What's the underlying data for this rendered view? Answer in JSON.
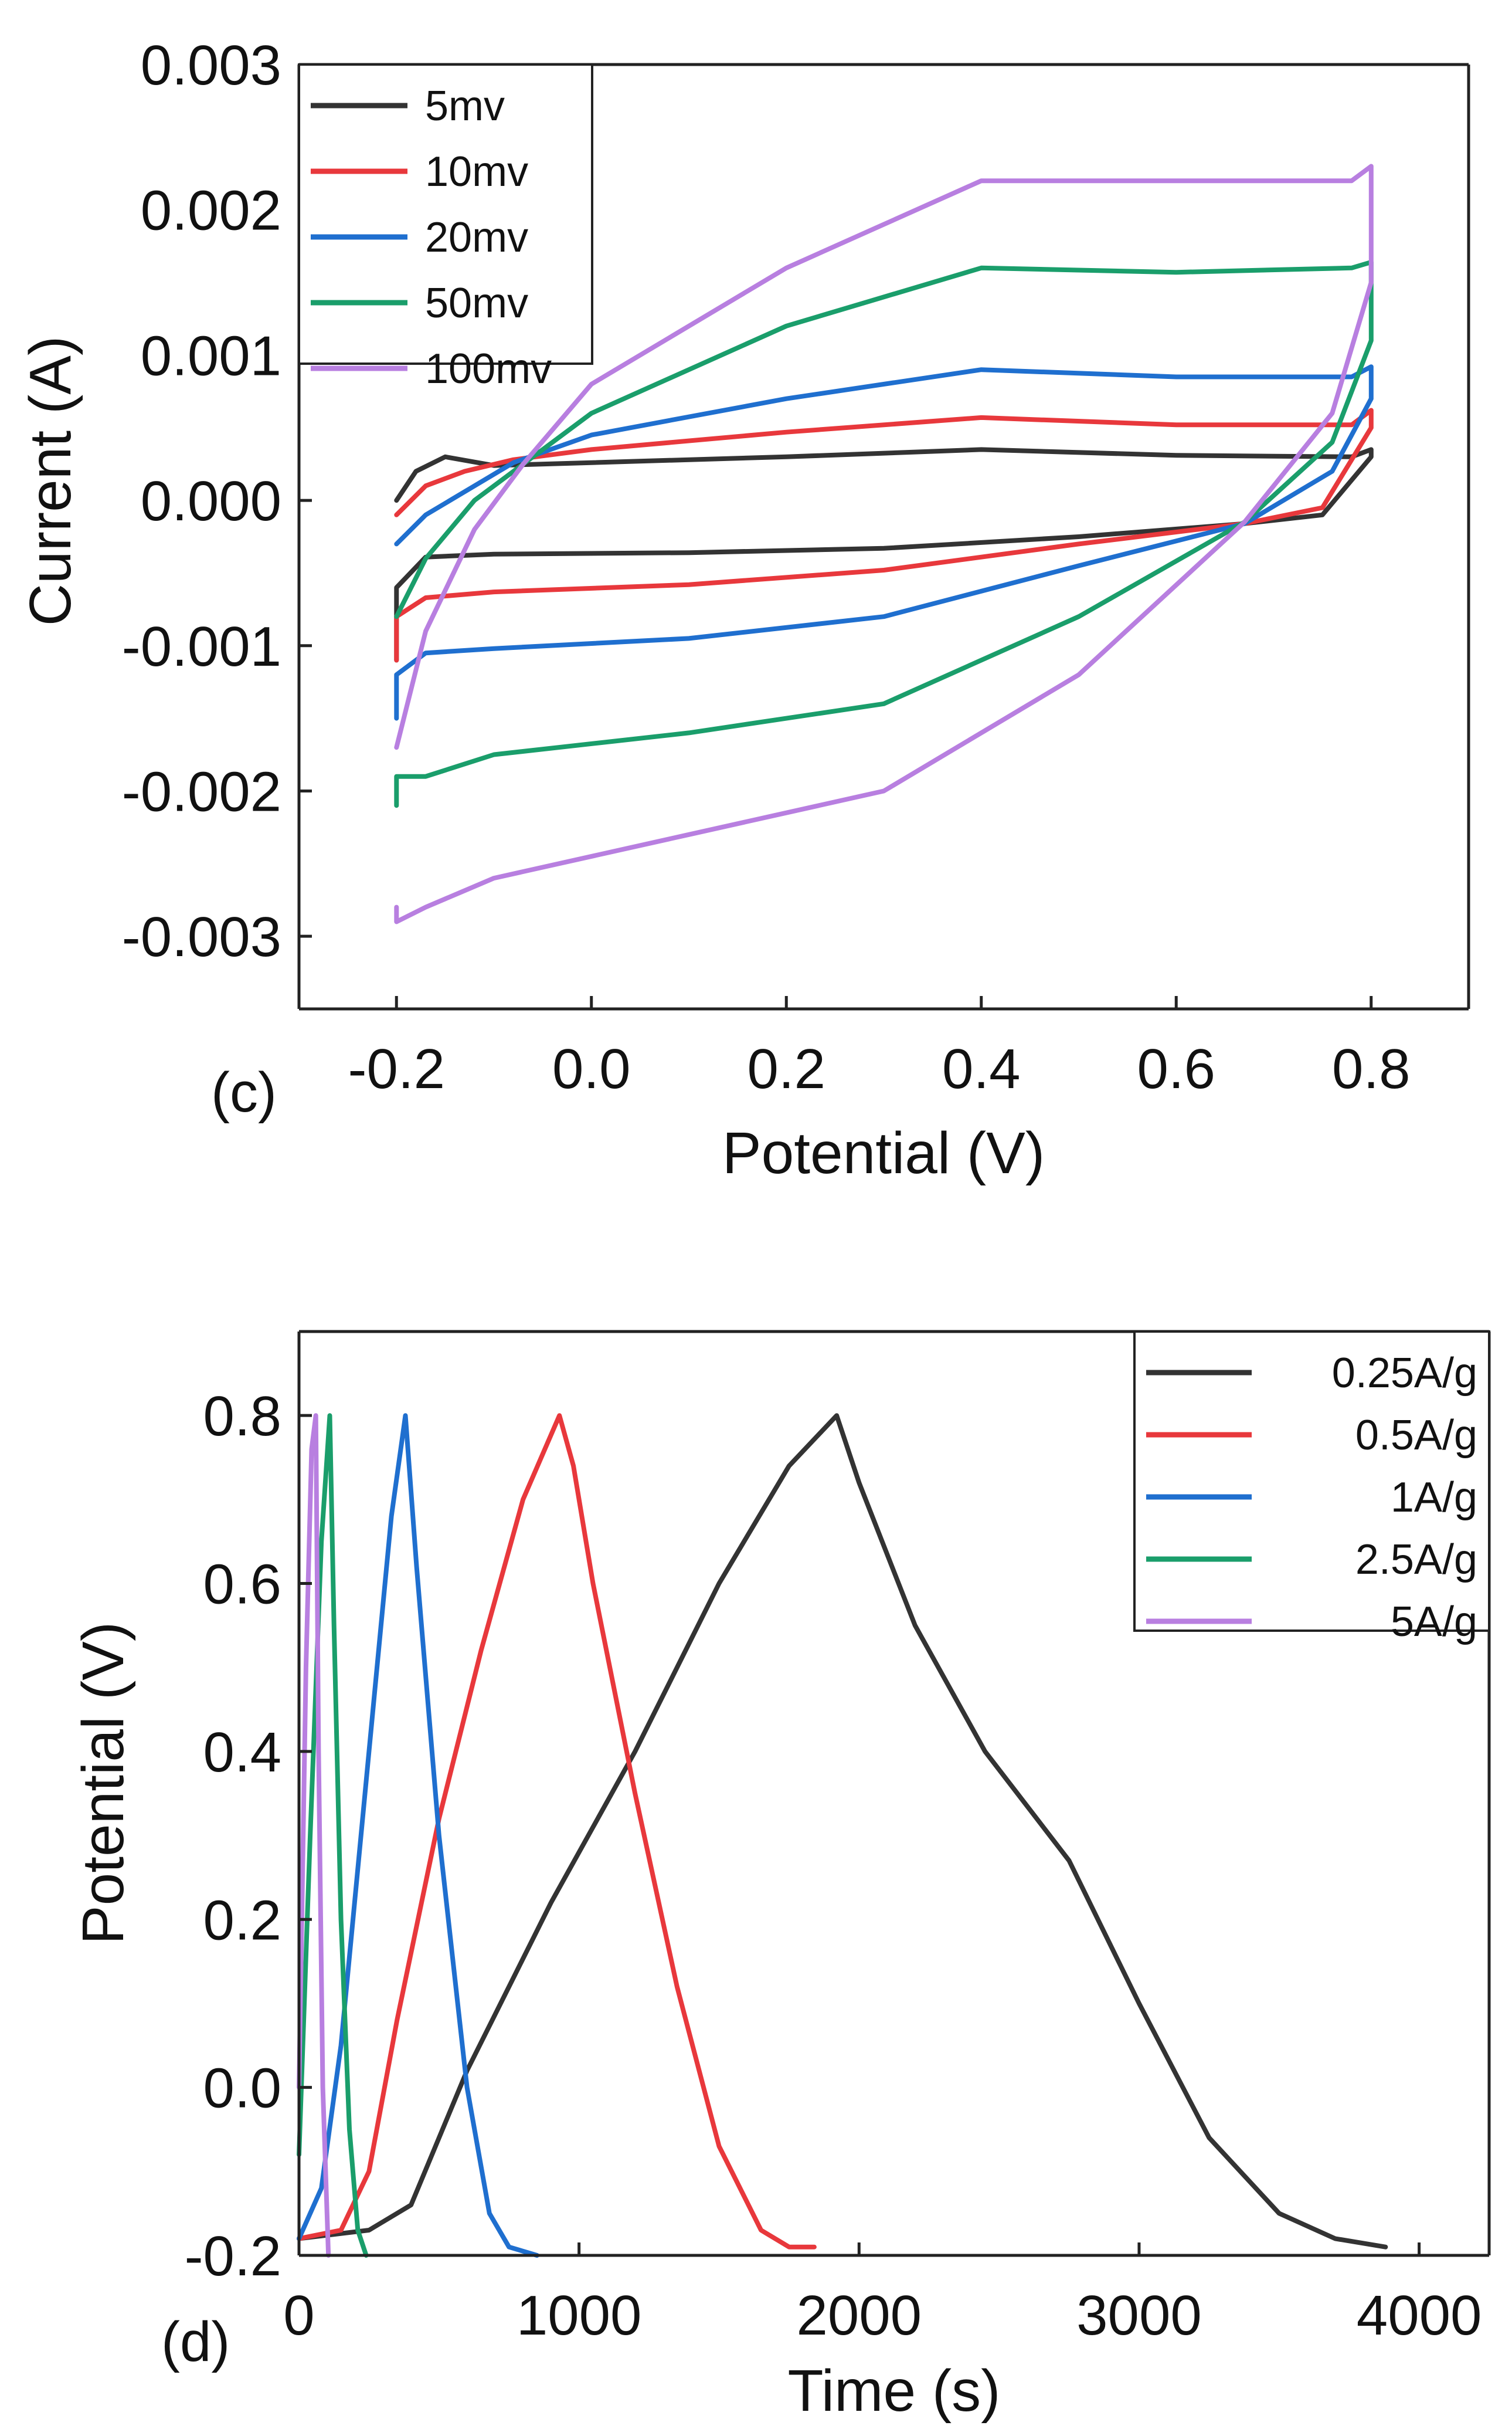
{
  "chart_data": [
    {
      "type": "line",
      "panel_label": "(c)",
      "xlabel": "Potential (V)",
      "ylabel": "Current (A)",
      "xlim": [
        -0.3,
        0.9
      ],
      "ylim": [
        -0.0035,
        0.003
      ],
      "xticks": [
        -0.2,
        0.0,
        0.2,
        0.4,
        0.6,
        0.8
      ],
      "xtick_labels": [
        "-0.2",
        "0.0",
        "0.2",
        "0.4",
        "0.6",
        "0.8"
      ],
      "yticks": [
        -0.003,
        -0.002,
        -0.001,
        0.0,
        0.001,
        0.002,
        0.003
      ],
      "ytick_labels": [
        "-0.003",
        "-0.002",
        "-0.001",
        "0.000",
        "0.001",
        "0.002",
        "0.003"
      ],
      "legend_position": "top-left",
      "series": [
        {
          "name": "5mv",
          "color": "#333333",
          "x": [
            -0.2,
            -0.18,
            -0.15,
            -0.1,
            0.0,
            0.2,
            0.4,
            0.6,
            0.78,
            0.8,
            0.8,
            0.75,
            0.67,
            0.5,
            0.3,
            0.1,
            -0.1,
            -0.17,
            -0.2,
            -0.2
          ],
          "y": [
            0.0,
            0.0002,
            0.0003,
            0.00024,
            0.00026,
            0.0003,
            0.00035,
            0.00031,
            0.0003,
            0.00035,
            0.0003,
            -0.0001,
            -0.00016,
            -0.00025,
            -0.00033,
            -0.00036,
            -0.00037,
            -0.00039,
            -0.0006,
            -0.0011
          ]
        },
        {
          "name": "10mv",
          "color": "#e8383c",
          "x": [
            -0.2,
            -0.17,
            -0.13,
            -0.08,
            0.0,
            0.2,
            0.4,
            0.6,
            0.78,
            0.8,
            0.8,
            0.75,
            0.67,
            0.5,
            0.3,
            0.1,
            -0.1,
            -0.17,
            -0.2,
            -0.2
          ],
          "y": [
            -0.0001,
            0.0001,
            0.0002,
            0.00028,
            0.00035,
            0.00047,
            0.00057,
            0.00052,
            0.00052,
            0.00062,
            0.0005,
            -5e-05,
            -0.00016,
            -0.0003,
            -0.00048,
            -0.00058,
            -0.00063,
            -0.00067,
            -0.0008,
            -0.0011
          ]
        },
        {
          "name": "20mv",
          "color": "#1f6fcf",
          "x": [
            -0.2,
            -0.17,
            -0.12,
            -0.08,
            0.0,
            0.2,
            0.4,
            0.6,
            0.78,
            0.8,
            0.8,
            0.76,
            0.67,
            0.5,
            0.3,
            0.1,
            -0.1,
            -0.17,
            -0.2,
            -0.2
          ],
          "y": [
            -0.0003,
            -0.0001,
            0.0001,
            0.00026,
            0.00045,
            0.0007,
            0.0009,
            0.00085,
            0.00085,
            0.00092,
            0.0007,
            0.0002,
            -0.00016,
            -0.00045,
            -0.0008,
            -0.00095,
            -0.00102,
            -0.00105,
            -0.0012,
            -0.0015
          ]
        },
        {
          "name": "50mv",
          "color": "#1a9e6b",
          "x": [
            -0.2,
            -0.17,
            -0.12,
            -0.07,
            0.0,
            0.2,
            0.4,
            0.6,
            0.78,
            0.8,
            0.8,
            0.76,
            0.67,
            0.5,
            0.3,
            0.1,
            -0.1,
            -0.17,
            -0.2,
            -0.2
          ],
          "y": [
            -0.0008,
            -0.0004,
            0.0,
            0.00025,
            0.0006,
            0.0012,
            0.0016,
            0.00157,
            0.0016,
            0.00164,
            0.0011,
            0.0004,
            -0.00015,
            -0.0008,
            -0.0014,
            -0.0016,
            -0.00175,
            -0.0019,
            -0.0019,
            -0.0021
          ]
        },
        {
          "name": "100mv",
          "color": "#b87fe0",
          "x": [
            -0.2,
            -0.17,
            -0.12,
            -0.07,
            0.0,
            0.2,
            0.4,
            0.6,
            0.78,
            0.8,
            0.8,
            0.76,
            0.67,
            0.5,
            0.3,
            0.1,
            -0.1,
            -0.17,
            -0.2,
            -0.2
          ],
          "y": [
            -0.0017,
            -0.0009,
            -0.0002,
            0.00025,
            0.0008,
            0.0016,
            0.0022,
            0.0022,
            0.0022,
            0.0023,
            0.0015,
            0.0006,
            -0.00015,
            -0.0012,
            -0.002,
            -0.0023,
            -0.0026,
            -0.0028,
            -0.0029,
            -0.0028
          ]
        }
      ],
      "legend": [
        "5mv",
        "10mv",
        "20mv",
        "50mv",
        "100mv"
      ]
    },
    {
      "type": "line",
      "panel_label": "(d)",
      "xlabel": "Time (s)",
      "ylabel": "Potential (V)",
      "xlim": [
        0,
        4250
      ],
      "ylim": [
        -0.2,
        0.9
      ],
      "xticks": [
        0,
        1000,
        2000,
        3000,
        4000
      ],
      "xtick_labels": [
        "0",
        "1000",
        "2000",
        "3000",
        "4000"
      ],
      "yticks": [
        -0.2,
        0.0,
        0.2,
        0.4,
        0.6,
        0.8
      ],
      "ytick_labels": [
        "-0.2",
        "0.0",
        "0.2",
        "0.4",
        "0.6",
        "0.8"
      ],
      "legend_position": "top-right",
      "series": [
        {
          "name": "0.25A/g",
          "color": "#333333",
          "x": [
            0,
            250,
            400,
            600,
            900,
            1200,
            1500,
            1750,
            1920,
            2000,
            2200,
            2450,
            2750,
            3000,
            3250,
            3500,
            3700,
            3880
          ],
          "y": [
            -0.18,
            -0.17,
            -0.14,
            0.02,
            0.22,
            0.4,
            0.6,
            0.74,
            0.8,
            0.72,
            0.55,
            0.4,
            0.27,
            0.1,
            -0.06,
            -0.15,
            -0.18,
            -0.19
          ]
        },
        {
          "name": "0.5A/g",
          "color": "#e8383c",
          "x": [
            0,
            150,
            250,
            350,
            500,
            650,
            800,
            930,
            980,
            1050,
            1200,
            1350,
            1500,
            1650,
            1750,
            1840
          ],
          "y": [
            -0.18,
            -0.17,
            -0.1,
            0.08,
            0.32,
            0.52,
            0.7,
            0.8,
            0.74,
            0.6,
            0.35,
            0.12,
            -0.07,
            -0.17,
            -0.19,
            -0.19
          ]
        },
        {
          "name": "1A/g",
          "color": "#1f6fcf",
          "x": [
            0,
            80,
            150,
            250,
            330,
            380,
            420,
            500,
            600,
            680,
            750,
            850
          ],
          "y": [
            -0.18,
            -0.12,
            0.05,
            0.4,
            0.68,
            0.8,
            0.62,
            0.3,
            0.0,
            -0.15,
            -0.19,
            -0.2
          ]
        },
        {
          "name": "2.5A/g",
          "color": "#1a9e6b",
          "x": [
            0,
            40,
            80,
            110,
            125,
            150,
            180,
            210,
            240
          ],
          "y": [
            -0.08,
            0.3,
            0.65,
            0.8,
            0.55,
            0.2,
            -0.05,
            -0.17,
            -0.2
          ]
        },
        {
          "name": "5A/g",
          "color": "#b87fe0",
          "x": [
            0,
            25,
            45,
            60,
            70,
            85,
            105
          ],
          "y": [
            0.0,
            0.5,
            0.76,
            0.8,
            0.4,
            0.0,
            -0.2
          ]
        }
      ],
      "legend": [
        "0.25A/g",
        "0.5A/g",
        "1A/g",
        "2.5A/g",
        "5A/g"
      ]
    }
  ]
}
